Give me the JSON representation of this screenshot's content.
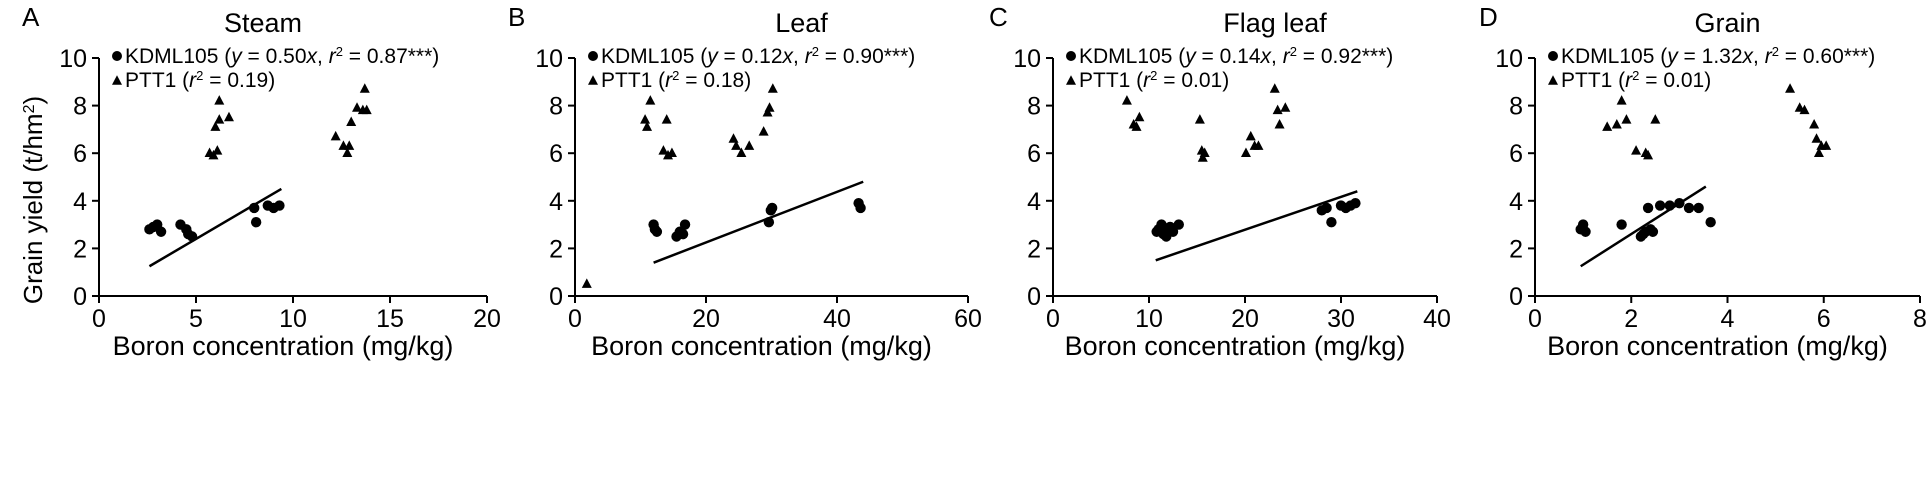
{
  "figure": {
    "ylabel": "Grain yield (t/hm²)",
    "ylabel_main": "Grain yield (t/hm",
    "ylabel_sup": "2",
    "ylabel_close": ")"
  },
  "chart_data": [
    {
      "type": "scatter",
      "panel_letter": "A",
      "title": "Steam",
      "xlabel": "Boron concentration (mg/kg)",
      "xlim": [
        0,
        20
      ],
      "ylim": [
        0,
        10
      ],
      "xticks": [
        "0",
        "5",
        "10",
        "15",
        "20"
      ],
      "yticks": [
        "0",
        "2",
        "4",
        "6",
        "8",
        "10"
      ],
      "legend_position": "top-left",
      "series": [
        {
          "name": "KDML105",
          "marker": "circle",
          "legend_parts": [
            "KDML105 (",
            "y",
            " = 0.50",
            "x",
            ", ",
            "r",
            "2",
            " = 0.87***)"
          ],
          "x": [
            2.6,
            2.8,
            3.0,
            3.2,
            4.2,
            4.5,
            4.6,
            4.8,
            8.0,
            8.1,
            8.7,
            9.0,
            9.3
          ],
          "y": [
            2.8,
            2.9,
            3.0,
            2.7,
            3.0,
            2.8,
            2.6,
            2.5,
            3.7,
            3.1,
            3.8,
            3.7,
            3.8
          ]
        },
        {
          "name": "PTT1",
          "marker": "triangle",
          "legend_parts": [
            "PTT1 (",
            "r",
            "2",
            " = 0.19)"
          ],
          "x": [
            5.7,
            5.9,
            6.0,
            6.1,
            6.2,
            6.2,
            6.7,
            12.2,
            12.6,
            12.8,
            12.9,
            13.0,
            13.3,
            13.6,
            13.7,
            13.8
          ],
          "y": [
            6.0,
            5.9,
            7.1,
            6.1,
            7.4,
            8.2,
            7.5,
            6.7,
            6.3,
            6.0,
            6.3,
            7.3,
            7.9,
            7.8,
            8.7,
            7.8
          ]
        }
      ],
      "fit_line": {
        "x": [
          2.6,
          9.4
        ],
        "y": [
          1.25,
          4.5
        ]
      }
    },
    {
      "type": "scatter",
      "panel_letter": "B",
      "title": "Leaf",
      "xlabel": "Boron concentration (mg/kg)",
      "xlim": [
        0,
        60
      ],
      "ylim": [
        0,
        10
      ],
      "xticks": [
        "0",
        "20",
        "40",
        "60"
      ],
      "yticks": [
        "0",
        "2",
        "4",
        "6",
        "8",
        "10"
      ],
      "legend_position": "top-left",
      "series": [
        {
          "name": "KDML105",
          "marker": "circle",
          "legend_parts": [
            "KDML105 (",
            "y",
            " = 0.12",
            "x",
            ", ",
            "r",
            "2",
            " = 0.90***)"
          ],
          "x": [
            12.0,
            12.2,
            12.5,
            15.5,
            16.0,
            16.5,
            16.8,
            29.6,
            29.9,
            30.1,
            43.3,
            43.6
          ],
          "y": [
            3.0,
            2.8,
            2.7,
            2.5,
            2.7,
            2.6,
            3.0,
            3.1,
            3.6,
            3.7,
            3.9,
            3.7
          ]
        },
        {
          "name": "PTT1",
          "marker": "triangle",
          "legend_parts": [
            "PTT1 (",
            "r",
            "2",
            " = 0.18)"
          ],
          "x": [
            1.8,
            10.7,
            11.0,
            11.5,
            13.5,
            14.0,
            14.2,
            14.8,
            24.2,
            24.6,
            25.4,
            26.6,
            28.8,
            29.4,
            29.7,
            30.2
          ],
          "y": [
            0.5,
            7.4,
            7.1,
            8.2,
            6.1,
            7.4,
            5.9,
            6.0,
            6.6,
            6.3,
            6.0,
            6.3,
            6.9,
            7.7,
            7.9,
            8.7
          ]
        }
      ],
      "fit_line": {
        "x": [
          12.0,
          44.0
        ],
        "y": [
          1.4,
          4.8
        ]
      }
    },
    {
      "type": "scatter",
      "panel_letter": "C",
      "title": "Flag leaf",
      "xlabel": "Boron concentration (mg/kg)",
      "xlim": [
        0,
        40
      ],
      "ylim": [
        0,
        10
      ],
      "xticks": [
        "0",
        "10",
        "20",
        "30",
        "40"
      ],
      "yticks": [
        "0",
        "2",
        "4",
        "6",
        "8",
        "10"
      ],
      "legend_position": "top-left",
      "series": [
        {
          "name": "KDML105",
          "marker": "circle",
          "legend_parts": [
            "KDML105 (",
            "y",
            " = 0.14",
            "x",
            ", ",
            "r",
            "2",
            " = 0.92***)"
          ],
          "x": [
            10.8,
            11.0,
            11.3,
            11.5,
            11.6,
            11.8,
            12.0,
            12.2,
            12.5,
            13.1,
            28.0,
            28.5,
            29.0,
            30.0,
            30.5,
            31.0,
            31.5
          ],
          "y": [
            2.7,
            2.8,
            3.0,
            2.6,
            2.8,
            2.5,
            2.7,
            2.9,
            2.7,
            3.0,
            3.6,
            3.7,
            3.1,
            3.8,
            3.7,
            3.8,
            3.9
          ],
          "points_shown": [
            [
              10.8,
              2.7
            ],
            [
              11.3,
              3.0
            ],
            [
              11.5,
              2.6
            ],
            [
              11.8,
              2.5
            ],
            [
              12.0,
              2.7
            ],
            [
              12.2,
              2.9
            ],
            [
              12.5,
              2.7
            ],
            [
              13.1,
              3.0
            ],
            [
              28.0,
              3.6
            ],
            [
              28.5,
              3.7
            ],
            [
              29.0,
              3.1
            ],
            [
              30.0,
              3.8
            ],
            [
              31.0,
              3.8
            ],
            [
              31.5,
              3.9
            ]
          ]
        },
        {
          "name": "PTT1",
          "marker": "triangle",
          "legend_parts": [
            "PTT1 (",
            "r",
            "2",
            " = 0.01)"
          ],
          "x": [
            7.7,
            8.4,
            8.7,
            9.0,
            15.3,
            15.5,
            15.6,
            15.8,
            20.1,
            20.6,
            21.0,
            21.4,
            23.1,
            23.4,
            23.6,
            24.2
          ],
          "y": [
            8.2,
            7.2,
            7.1,
            7.5,
            7.4,
            6.1,
            5.8,
            6.0,
            6.0,
            6.7,
            6.3,
            6.3,
            8.7,
            7.8,
            7.2,
            7.9
          ]
        }
      ],
      "fit_line": {
        "x": [
          10.7,
          31.7
        ],
        "y": [
          1.5,
          4.4
        ]
      }
    },
    {
      "type": "scatter",
      "panel_letter": "D",
      "title": "Grain",
      "xlabel": "Boron concentration (mg/kg)",
      "xlim": [
        0,
        8
      ],
      "ylim": [
        0,
        10
      ],
      "xticks": [
        "0",
        "2",
        "4",
        "6",
        "8"
      ],
      "yticks": [
        "0",
        "2",
        "4",
        "6",
        "8",
        "10"
      ],
      "legend_position": "top-left",
      "series": [
        {
          "name": "KDML105",
          "marker": "circle",
          "legend_parts": [
            "KDML105 (",
            "y",
            " = 1.32",
            "x",
            ", ",
            "r",
            "2",
            " = 0.60***)"
          ],
          "x": [
            0.95,
            1.0,
            1.05,
            1.8,
            2.2,
            2.25,
            2.3,
            2.35,
            2.4,
            2.45,
            2.6,
            2.8,
            3.0,
            3.2,
            3.4,
            3.65
          ],
          "y": [
            2.8,
            3.0,
            2.7,
            3.0,
            2.5,
            2.6,
            2.7,
            3.7,
            2.8,
            2.7,
            3.8,
            3.8,
            3.9,
            3.7,
            3.7,
            3.1
          ]
        },
        {
          "name": "PTT1",
          "marker": "triangle",
          "legend_parts": [
            "PTT1 (",
            "r",
            "2",
            " = 0.01)"
          ],
          "x": [
            1.5,
            1.7,
            1.8,
            1.9,
            2.1,
            2.3,
            2.35,
            2.5,
            5.3,
            5.5,
            5.6,
            5.8,
            5.85,
            5.9,
            5.95,
            6.05
          ],
          "y": [
            7.1,
            7.2,
            8.2,
            7.4,
            6.1,
            6.0,
            5.9,
            7.4,
            8.7,
            7.9,
            7.8,
            7.2,
            6.6,
            6.0,
            6.3,
            6.3
          ]
        }
      ],
      "fit_line": {
        "x": [
          0.95,
          3.55
        ],
        "y": [
          1.25,
          4.6
        ]
      }
    }
  ]
}
